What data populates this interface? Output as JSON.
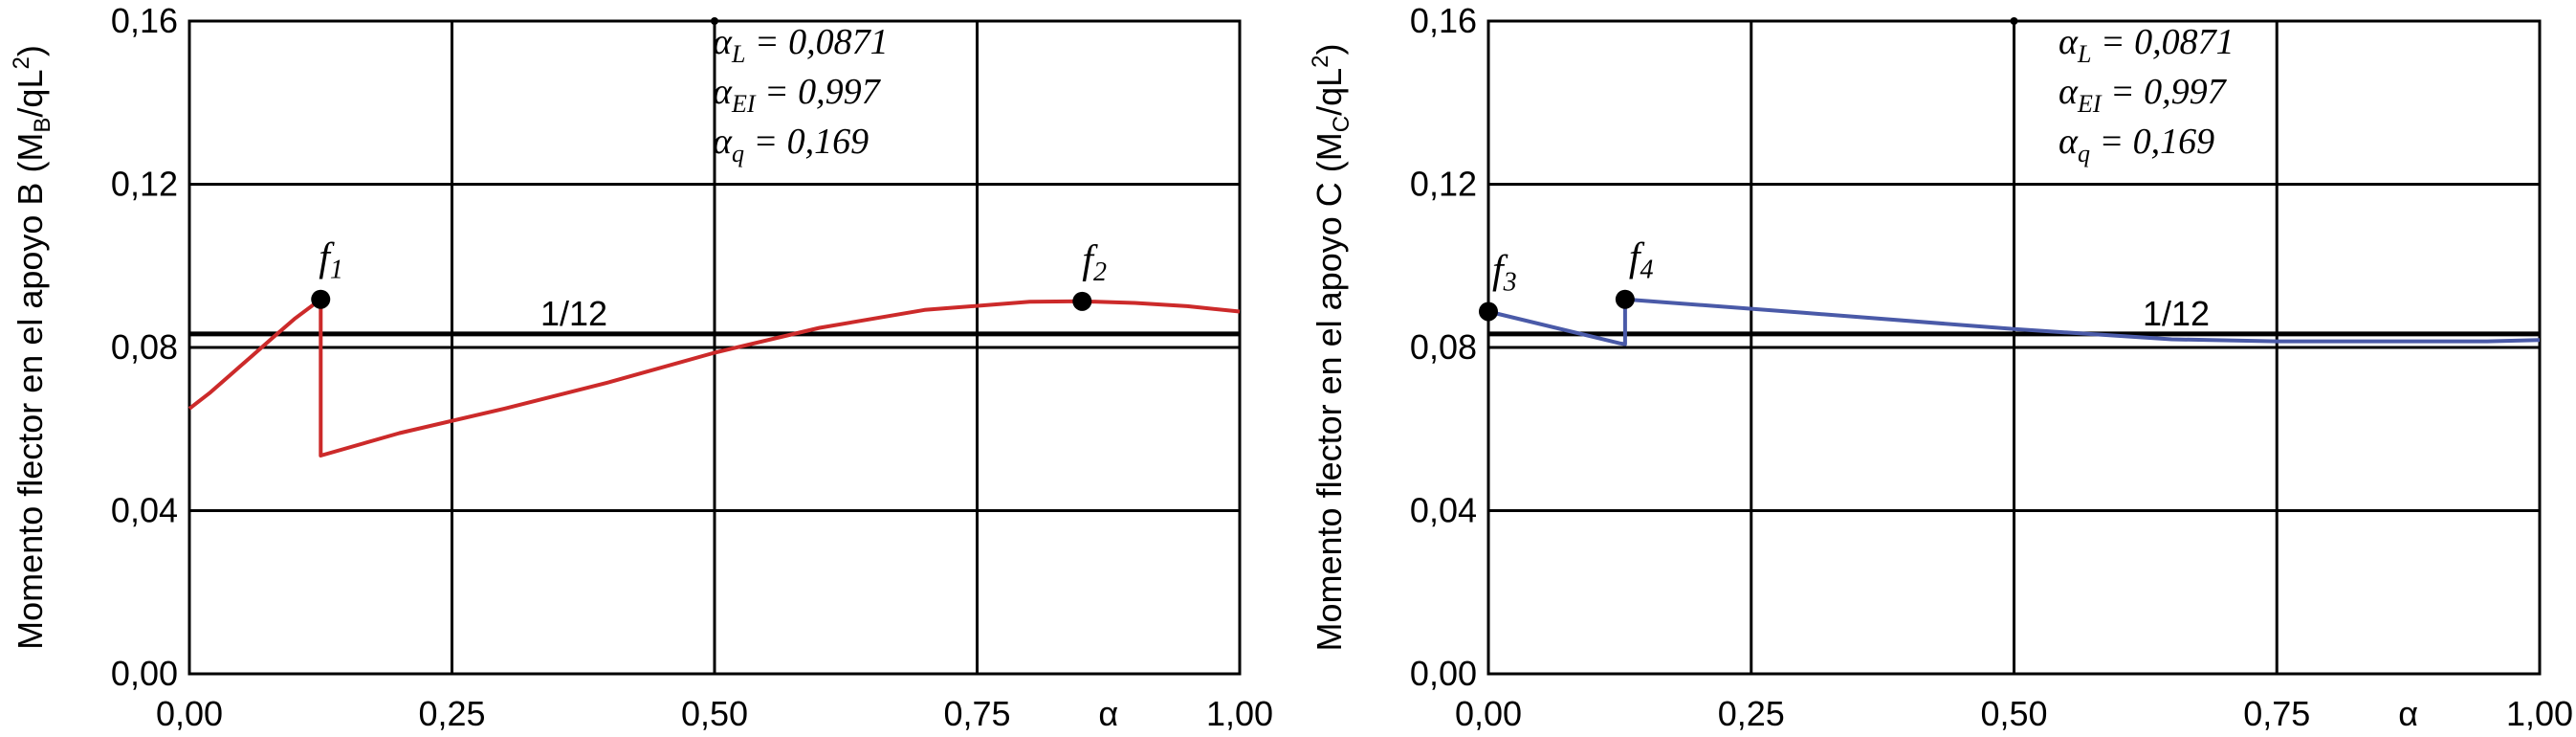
{
  "chart_data": [
    {
      "type": "line",
      "ylabel": {
        "main": "Momento flector en el apoyo B (M",
        "sub": "B",
        "mid": "/qL",
        "sup": "2",
        "end": ")"
      },
      "xlabel": "α",
      "xlim": [
        0,
        1
      ],
      "ylim": [
        0,
        0.16
      ],
      "xticks": [
        0,
        0.25,
        0.5,
        0.75,
        1
      ],
      "xtick_labels": [
        "0,00",
        "0,25",
        "0,50",
        "0,75",
        "1,00"
      ],
      "yticks": [
        0,
        0.04,
        0.08,
        0.12,
        0.16
      ],
      "ytick_labels": [
        "0,00",
        "0,04",
        "0,08",
        "0,12",
        "0,16"
      ],
      "grid": true,
      "reference_line": {
        "y": 0.0833,
        "label": "1/12"
      },
      "annotations": [
        {
          "sym": "α",
          "sub": "L",
          "text": " = 0,0871"
        },
        {
          "sym": "α",
          "sub": "EI",
          "text": " = 0,997"
        },
        {
          "sym": "α",
          "sub": "q",
          "text": " = 0,169"
        }
      ],
      "marker": {
        "x": 0.5,
        "y": 0.16
      },
      "series": [
        {
          "color": "#cc2a2a",
          "x": [
            0,
            0.02,
            0.04,
            0.06,
            0.08,
            0.1,
            0.125,
            0.125,
            0.2,
            0.3,
            0.4,
            0.5,
            0.6,
            0.7,
            0.8,
            0.85,
            0.9,
            0.95,
            1.0
          ],
          "y": [
            0.065,
            0.069,
            0.0735,
            0.078,
            0.0825,
            0.087,
            0.0918,
            0.0535,
            0.059,
            0.065,
            0.0715,
            0.0787,
            0.0848,
            0.0892,
            0.0912,
            0.0913,
            0.0909,
            0.0901,
            0.0888
          ]
        }
      ],
      "points": [
        {
          "label": "f",
          "sub": "1",
          "x": 0.125,
          "y": 0.0918
        },
        {
          "label": "f",
          "sub": "2",
          "x": 0.85,
          "y": 0.0913
        }
      ]
    },
    {
      "type": "line",
      "ylabel": {
        "main": "Momento flector en el apoyo C (M",
        "sub": "C",
        "mid": "/qL",
        "sup": "2",
        "end": ")"
      },
      "xlabel": "α",
      "xlim": [
        0,
        1
      ],
      "ylim": [
        0,
        0.16
      ],
      "xticks": [
        0,
        0.25,
        0.5,
        0.75,
        1
      ],
      "xtick_labels": [
        "0,00",
        "0,25",
        "0,50",
        "0,75",
        "1,00"
      ],
      "yticks": [
        0,
        0.04,
        0.08,
        0.12,
        0.16
      ],
      "ytick_labels": [
        "0,00",
        "0,04",
        "0,08",
        "0,12",
        "0,16"
      ],
      "grid": true,
      "reference_line": {
        "y": 0.0833,
        "label": "1/12"
      },
      "annotations": [
        {
          "sym": "α",
          "sub": "L",
          "text": " = 0,0871"
        },
        {
          "sym": "α",
          "sub": "EI",
          "text": " = 0,997"
        },
        {
          "sym": "α",
          "sub": "q",
          "text": " = 0,169"
        }
      ],
      "marker": {
        "x": 0.5,
        "y": 0.16
      },
      "series": [
        {
          "color": "#4a5aa8",
          "x": [
            0,
            0.125,
            0.13,
            0.13,
            0.3,
            0.5,
            0.65,
            0.75,
            0.85,
            0.95,
            1.0
          ],
          "y": [
            0.0888,
            0.081,
            0.0808,
            0.0918,
            0.0885,
            0.0845,
            0.082,
            0.0815,
            0.0815,
            0.0815,
            0.0818
          ]
        }
      ],
      "points": [
        {
          "label": "f",
          "sub": "3",
          "x": 0.0,
          "y": 0.0888
        },
        {
          "label": "f",
          "sub": "4",
          "x": 0.13,
          "y": 0.0918
        }
      ]
    }
  ]
}
